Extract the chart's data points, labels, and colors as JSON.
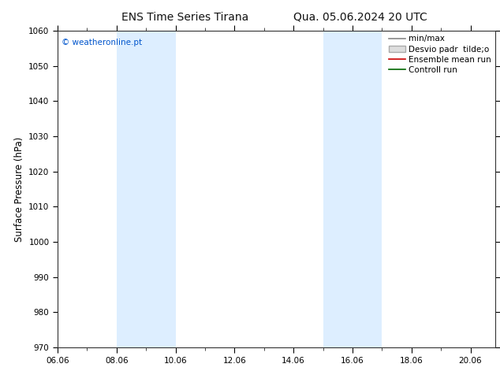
{
  "title_left": "ENS Time Series Tirana",
  "title_right": "Qua. 05.06.2024 20 UTC",
  "ylabel": "Surface Pressure (hPa)",
  "ylim": [
    970,
    1060
  ],
  "yticks": [
    970,
    980,
    990,
    1000,
    1010,
    1020,
    1030,
    1040,
    1050,
    1060
  ],
  "xlim": [
    0,
    14.833
  ],
  "xtick_labels": [
    "06.06",
    "08.06",
    "10.06",
    "12.06",
    "14.06",
    "16.06",
    "18.06",
    "20.06"
  ],
  "xtick_positions": [
    0,
    2,
    4,
    6,
    8,
    10,
    12,
    14
  ],
  "shaded_bands": [
    {
      "start": 2.0,
      "end": 4.0
    },
    {
      "start": 9.0,
      "end": 11.0
    }
  ],
  "shade_color": "#ddeeff",
  "watermark": "© weatheronline.pt",
  "watermark_color": "#0055cc",
  "legend_entries": [
    {
      "label": "min/max",
      "color": "#888888",
      "lw": 1.2,
      "ls": "-",
      "type": "line"
    },
    {
      "label": "Desvio padr  tilde;o",
      "facecolor": "#dddddd",
      "edgecolor": "#aaaaaa",
      "type": "patch"
    },
    {
      "label": "Ensemble mean run",
      "color": "#cc0000",
      "lw": 1.2,
      "ls": "-",
      "type": "line"
    },
    {
      "label": "Controll run",
      "color": "#006600",
      "lw": 1.2,
      "ls": "-",
      "type": "line"
    }
  ],
  "background_color": "#ffffff",
  "title_fontsize": 10,
  "tick_fontsize": 7.5,
  "ylabel_fontsize": 8.5,
  "legend_fontsize": 7.5
}
